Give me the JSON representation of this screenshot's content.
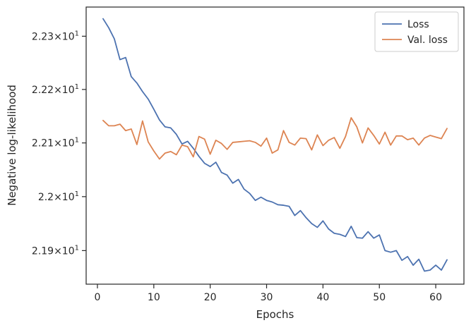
{
  "chart_data": {
    "type": "line",
    "xlabel": "Epochs",
    "ylabel": "Negative log-likelihood",
    "x_ticks": [
      0,
      10,
      20,
      30,
      40,
      50,
      60
    ],
    "y_ticks": [
      {
        "value": 21.9,
        "mantissa": "2.19",
        "exponent": "1"
      },
      {
        "value": 22.0,
        "mantissa": "2.2",
        "exponent": "1"
      },
      {
        "value": 22.1,
        "mantissa": "2.21",
        "exponent": "1"
      },
      {
        "value": 22.2,
        "mantissa": "2.22",
        "exponent": "1"
      },
      {
        "value": 22.3,
        "mantissa": "2.23",
        "exponent": "1"
      }
    ],
    "y_tick_sep": "×10",
    "xlim": [
      -2,
      65
    ],
    "ylim": [
      21.838,
      22.355
    ],
    "y_scale": "log",
    "grid": false,
    "legend_position": "top-right",
    "x": [
      1,
      2,
      3,
      4,
      5,
      6,
      7,
      8,
      9,
      10,
      11,
      12,
      13,
      14,
      15,
      16,
      17,
      18,
      19,
      20,
      21,
      22,
      23,
      24,
      25,
      26,
      27,
      28,
      29,
      30,
      31,
      32,
      33,
      34,
      35,
      36,
      37,
      38,
      39,
      40,
      41,
      42,
      43,
      44,
      45,
      46,
      47,
      48,
      49,
      50,
      51,
      52,
      53,
      54,
      55,
      56,
      57,
      58,
      59,
      60,
      61,
      62
    ],
    "series": [
      {
        "name": "Loss",
        "color": "#4c72b0",
        "values": [
          22.333,
          22.316,
          22.295,
          22.256,
          22.26,
          22.224,
          22.212,
          22.196,
          22.182,
          22.163,
          22.143,
          22.13,
          22.128,
          22.116,
          22.098,
          22.103,
          22.09,
          22.075,
          22.062,
          22.056,
          22.064,
          22.045,
          22.04,
          22.025,
          22.032,
          22.014,
          22.006,
          21.993,
          21.999,
          21.993,
          21.99,
          21.985,
          21.984,
          21.982,
          21.965,
          21.974,
          21.961,
          21.95,
          21.943,
          21.955,
          21.94,
          21.932,
          21.93,
          21.926,
          21.945,
          21.924,
          21.923,
          21.935,
          21.923,
          21.929,
          21.9,
          21.897,
          21.9,
          21.882,
          21.889,
          21.873,
          21.884,
          21.862,
          21.864,
          21.873,
          21.864,
          21.883
        ]
      },
      {
        "name": "Val. loss",
        "color": "#dd8452",
        "values": [
          22.142,
          22.132,
          22.132,
          22.135,
          22.123,
          22.126,
          22.097,
          22.141,
          22.102,
          22.085,
          22.07,
          22.081,
          22.084,
          22.078,
          22.096,
          22.093,
          22.074,
          22.112,
          22.107,
          22.079,
          22.105,
          22.099,
          22.088,
          22.101,
          22.102,
          22.103,
          22.104,
          22.101,
          22.094,
          22.109,
          22.081,
          22.087,
          22.123,
          22.101,
          22.096,
          22.109,
          22.108,
          22.087,
          22.115,
          22.095,
          22.105,
          22.11,
          22.09,
          22.112,
          22.147,
          22.13,
          22.1,
          22.128,
          22.114,
          22.098,
          22.12,
          22.096,
          22.113,
          22.113,
          22.106,
          22.109,
          22.096,
          22.109,
          22.114,
          22.111,
          22.108,
          22.127
        ]
      }
    ]
  }
}
